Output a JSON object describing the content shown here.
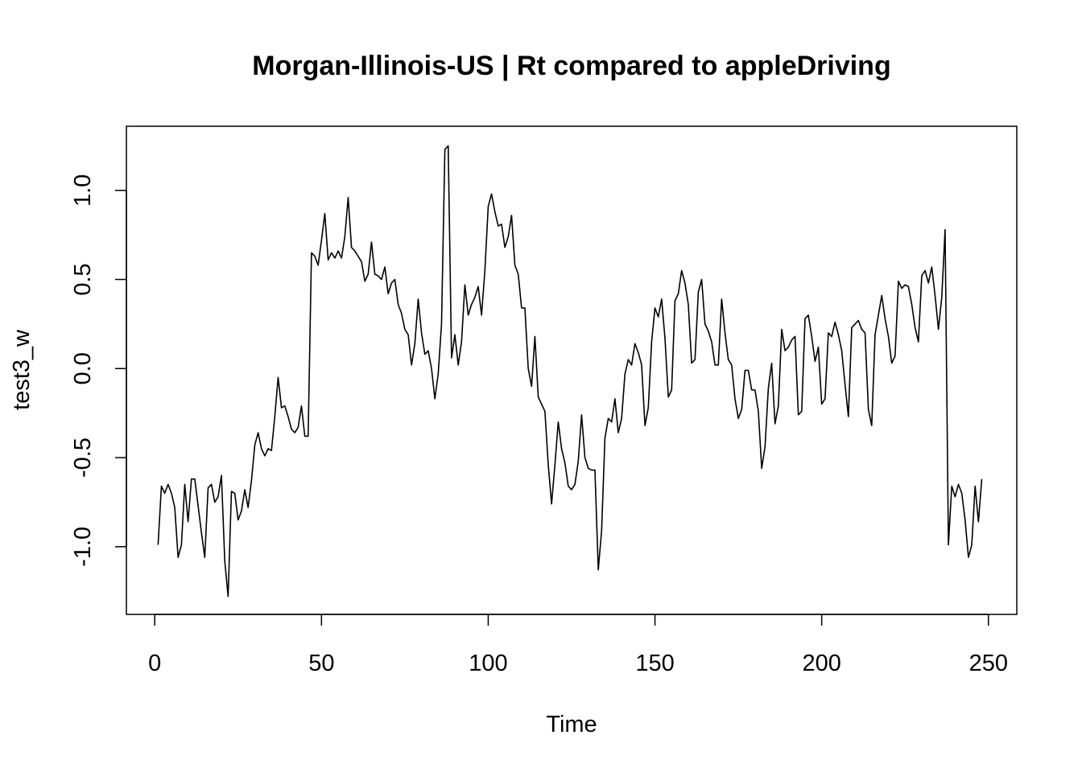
{
  "chart_data": {
    "type": "line",
    "title": "Morgan-Illinois-US | Rt compared to appleDriving",
    "xlabel": "Time",
    "ylabel": "test3_w",
    "xlim": [
      -8.5,
      258.5
    ],
    "ylim": [
      -1.38,
      1.36
    ],
    "x_ticks": [
      0,
      50,
      100,
      150,
      200,
      250
    ],
    "x_tick_labels": [
      "0",
      "50",
      "100",
      "150",
      "200",
      "250"
    ],
    "y_ticks": [
      -1.0,
      -0.5,
      0.0,
      0.5,
      1.0
    ],
    "y_tick_labels": [
      "-1.0",
      "-0.5",
      "0.0",
      "0.5",
      "1.0"
    ],
    "grid": false,
    "line_color": "#000000",
    "series": [
      {
        "x_start": 1,
        "x_step": 1,
        "values": [
          -0.99,
          -0.66,
          -0.7,
          -0.65,
          -0.7,
          -0.78,
          -1.06,
          -0.99,
          -0.65,
          -0.86,
          -0.62,
          -0.62,
          -0.77,
          -0.92,
          -1.06,
          -0.67,
          -0.65,
          -0.75,
          -0.72,
          -0.6,
          -1.08,
          -1.28,
          -0.69,
          -0.7,
          -0.85,
          -0.8,
          -0.68,
          -0.78,
          -0.63,
          -0.43,
          -0.36,
          -0.45,
          -0.49,
          -0.45,
          -0.46,
          -0.27,
          -0.05,
          -0.22,
          -0.21,
          -0.27,
          -0.34,
          -0.36,
          -0.33,
          -0.21,
          -0.38,
          -0.38,
          0.65,
          0.63,
          0.58,
          0.72,
          0.87,
          0.61,
          0.65,
          0.62,
          0.66,
          0.62,
          0.74,
          0.96,
          0.68,
          0.66,
          0.63,
          0.6,
          0.49,
          0.53,
          0.71,
          0.53,
          0.52,
          0.5,
          0.57,
          0.42,
          0.48,
          0.5,
          0.36,
          0.31,
          0.22,
          0.19,
          0.02,
          0.14,
          0.39,
          0.2,
          0.08,
          0.1,
          0.0,
          -0.17,
          -0.03,
          0.25,
          1.23,
          1.25,
          0.06,
          0.19,
          0.02,
          0.15,
          0.47,
          0.3,
          0.36,
          0.4,
          0.46,
          0.3,
          0.55,
          0.91,
          0.98,
          0.88,
          0.8,
          0.81,
          0.68,
          0.74,
          0.86,
          0.58,
          0.53,
          0.34,
          0.34,
          0.0,
          -0.1,
          0.18,
          -0.16,
          -0.2,
          -0.24,
          -0.54,
          -0.76,
          -0.54,
          -0.3,
          -0.45,
          -0.53,
          -0.66,
          -0.68,
          -0.65,
          -0.52,
          -0.26,
          -0.5,
          -0.56,
          -0.57,
          -0.57,
          -1.13,
          -0.91,
          -0.39,
          -0.28,
          -0.3,
          -0.17,
          -0.36,
          -0.28,
          -0.03,
          0.05,
          0.02,
          0.14,
          0.09,
          0.02,
          -0.32,
          -0.22,
          0.15,
          0.34,
          0.29,
          0.39,
          0.17,
          -0.16,
          -0.12,
          0.38,
          0.42,
          0.55,
          0.48,
          0.36,
          0.03,
          0.05,
          0.43,
          0.5,
          0.25,
          0.21,
          0.15,
          0.02,
          0.02,
          0.39,
          0.2,
          0.05,
          0.02,
          -0.17,
          -0.28,
          -0.23,
          -0.01,
          -0.01,
          -0.12,
          -0.12,
          -0.24,
          -0.56,
          -0.44,
          -0.11,
          0.03,
          -0.31,
          -0.21,
          0.22,
          0.1,
          0.12,
          0.16,
          0.18,
          -0.26,
          -0.24,
          0.28,
          0.3,
          0.18,
          0.04,
          0.12,
          -0.2,
          -0.17,
          0.2,
          0.18,
          0.26,
          0.19,
          0.1,
          -0.09,
          -0.27,
          0.23,
          0.25,
          0.27,
          0.22,
          0.2,
          -0.23,
          -0.32,
          0.19,
          0.3,
          0.41,
          0.28,
          0.18,
          0.03,
          0.07,
          0.49,
          0.45,
          0.47,
          0.46,
          0.36,
          0.23,
          0.15,
          0.52,
          0.55,
          0.48,
          0.57,
          0.41,
          0.22,
          0.4,
          0.78,
          -0.99,
          -0.66,
          -0.72,
          -0.65,
          -0.7,
          -0.85,
          -1.06,
          -0.99,
          -0.66,
          -0.86,
          -0.62
        ]
      }
    ]
  }
}
